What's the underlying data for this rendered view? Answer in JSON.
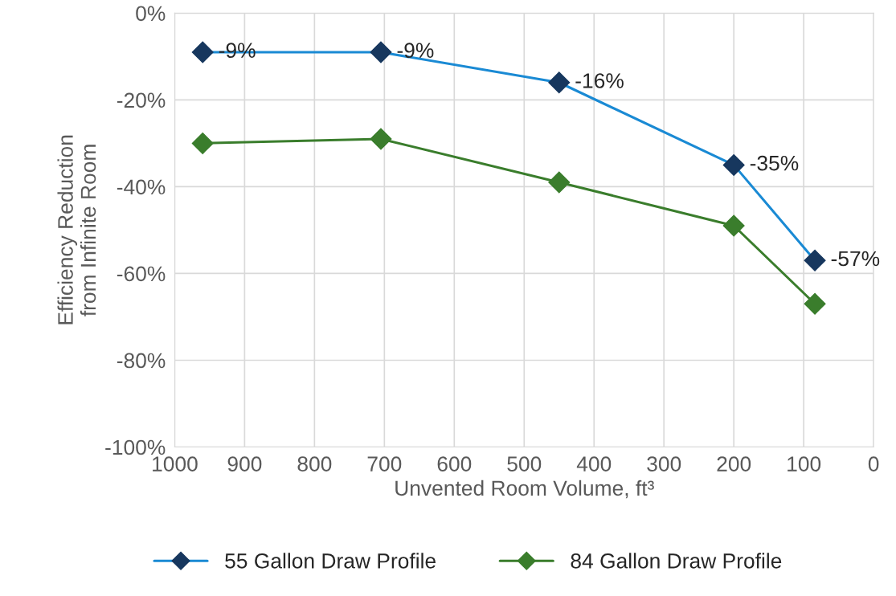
{
  "chart_data": {
    "type": "line",
    "xlabel": "Unvented Room Volume, ft³",
    "ylabel": "Efficiency Reduction\nfrom Infinite Room",
    "xlim": [
      1000,
      0
    ],
    "xticks": [
      1000,
      900,
      800,
      700,
      600,
      500,
      400,
      300,
      200,
      100,
      0
    ],
    "ylim": [
      -100,
      0
    ],
    "yticks": [
      {
        "value": 0,
        "label": "0%"
      },
      {
        "value": -20,
        "label": "-20%"
      },
      {
        "value": -40,
        "label": "-40%"
      },
      {
        "value": -60,
        "label": "-60%"
      },
      {
        "value": -80,
        "label": "-80%"
      },
      {
        "value": -100,
        "label": "-100%"
      }
    ],
    "grid": true,
    "legend": "bottom",
    "marker": "diamond",
    "series": [
      {
        "name": "55 Gallon Draw Profile",
        "color": "#1a8ad4",
        "colors": [
          "#17375e",
          "#17375e",
          "#17375e",
          "#17375e",
          "#17375e"
        ],
        "x": [
          960,
          705,
          450,
          200,
          84
        ],
        "values": [
          -9,
          -9,
          -16,
          -35,
          -57
        ],
        "value_labels": [
          "-9%",
          "-9%",
          "-16%",
          "-35%",
          "-57%"
        ]
      },
      {
        "name": "84 Gallon Draw Profile",
        "color": "#3a7d2c",
        "colors": [
          "#3a7d2c",
          "#3a7d2c",
          "#3a7d2c",
          "#3a7d2c",
          "#3a7d2c"
        ],
        "x": [
          960,
          705,
          450,
          200,
          84
        ],
        "values": [
          -30,
          -29,
          -39,
          -49,
          -67
        ]
      }
    ]
  }
}
